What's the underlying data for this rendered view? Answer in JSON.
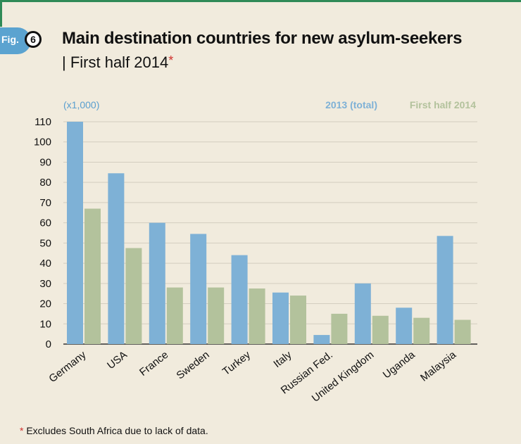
{
  "figure": {
    "badge": "Fig.",
    "number": "6",
    "title": "Main destination countries for new asylum-seekers",
    "subtitle": "| First half 2014",
    "subtitle_mark": "*"
  },
  "footnote": {
    "mark": "*",
    "text": "Excludes South Africa due to lack of data."
  },
  "colors": {
    "series_2013": "#7eb1d6",
    "series_2014": "#b3c29c",
    "grid": "#d3cdbf",
    "axis": "#333333",
    "footnote_mark": "#d0312d"
  },
  "chart_data": {
    "type": "bar",
    "unit_label": "(x1,000)",
    "categories": [
      "Germany",
      "USA",
      "France",
      "Sweden",
      "Turkey",
      "Italy",
      "Russian Fed.",
      "United Kingdom",
      "Uganda",
      "Malaysia"
    ],
    "series": [
      {
        "name": "2013 (total)",
        "values": [
          110,
          84.5,
          60,
          54.5,
          44,
          25.5,
          4.5,
          30,
          18,
          53.5
        ]
      },
      {
        "name": "First half 2014",
        "values": [
          67,
          47.5,
          28,
          28,
          27.5,
          24,
          15,
          14,
          13,
          12
        ]
      }
    ],
    "yticks": [
      0,
      10,
      20,
      30,
      40,
      50,
      60,
      70,
      80,
      90,
      100,
      110
    ],
    "ylim": [
      0,
      110
    ],
    "grid": true,
    "legend_position": "top-right"
  }
}
